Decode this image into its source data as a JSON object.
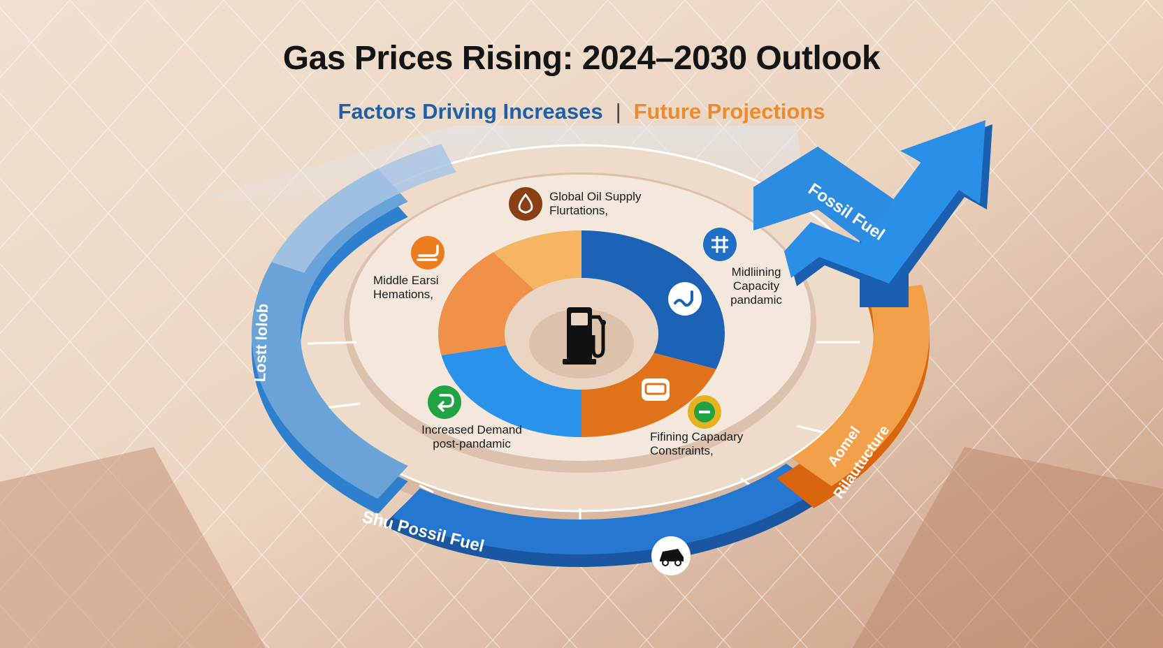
{
  "title": "Gas Prices Rising: 2024–2030 Outlook",
  "subtitle": {
    "left": "Factors Driving Increases",
    "separator": "|",
    "right": "Future Projections"
  },
  "factors": [
    {
      "id": "global-oil",
      "lines": [
        "Global Oil Supply",
        "Flurtations,"
      ],
      "icon": "oil-drop-icon",
      "color": "#8a3f12"
    },
    {
      "id": "middle-east",
      "lines": [
        "Middle Earsi",
        "Hemations,"
      ],
      "icon": "oil-tanker-icon",
      "color": "#ec7d1f"
    },
    {
      "id": "midlining",
      "lines": [
        "Midliining",
        "Capacity",
        "pandamic"
      ],
      "icon": "refinery-icon",
      "color": "#1f6fc4"
    },
    {
      "id": "increased-demand",
      "lines": [
        "Increased Demand",
        "post-pandamic"
      ],
      "icon": "demand-icon",
      "color": "#22a343"
    },
    {
      "id": "refining",
      "lines": [
        "Fifining Capadary",
        "Constraints,"
      ],
      "icon": "refining-icon",
      "color": "#e7b21f"
    }
  ],
  "arcs": {
    "left": "Lostt lolob",
    "bottom": "Shu Possil Fuel",
    "right_line1": "Aomel",
    "right_line2": "Rilautucture",
    "arrow": "Fossil Fuel"
  },
  "icons": {
    "center": "fuel-pump-icon",
    "wave": "wave-icon",
    "tanker": "tanker-icon",
    "car": "car-icon",
    "trend": "up-arrow-icon"
  },
  "colors": {
    "blue_dark": "#1b61b3",
    "blue_mid": "#2490e6",
    "blue_light": "#6aa3d8",
    "orange": "#f0923c",
    "orange_dark": "#d9660f",
    "orange_light": "#f7b461",
    "background": "#e9d2bf"
  }
}
